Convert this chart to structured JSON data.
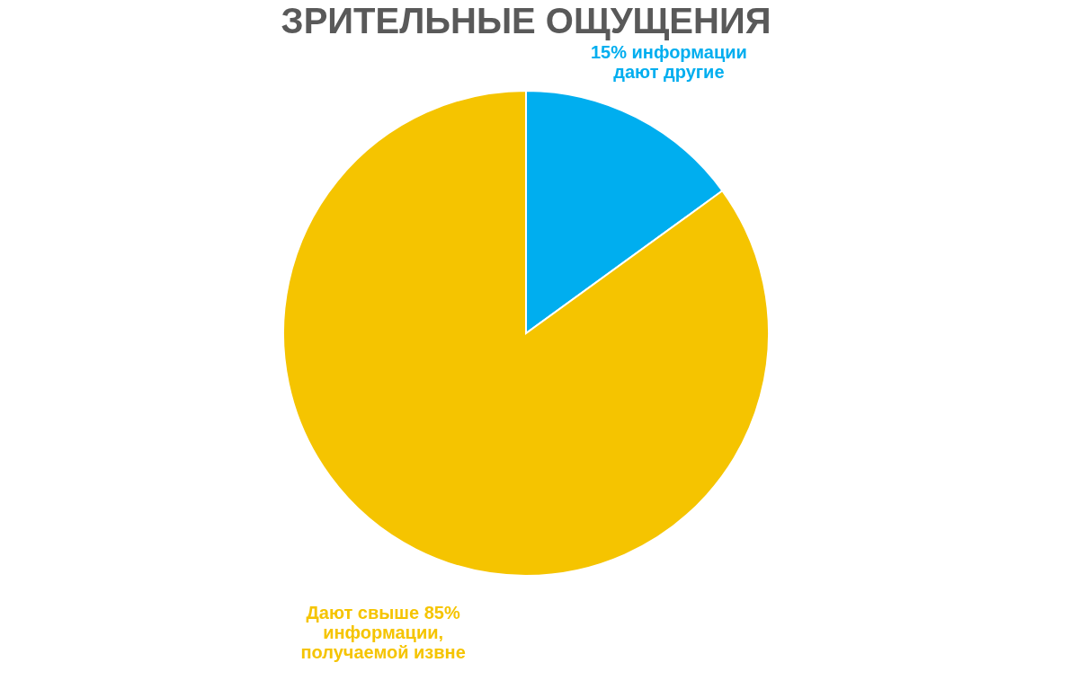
{
  "chart_data": {
    "type": "pie",
    "title": "ЗРИТЕЛЬНЫЕ ОЩУЩЕНИЯ",
    "categories": [
      "15% информации\nдают другие",
      "Дают свыше 85%\nинформации,\nполучаемой извне"
    ],
    "values": [
      15,
      85
    ],
    "colors": [
      "#00aeef",
      "#f5c400"
    ],
    "legend": false
  }
}
